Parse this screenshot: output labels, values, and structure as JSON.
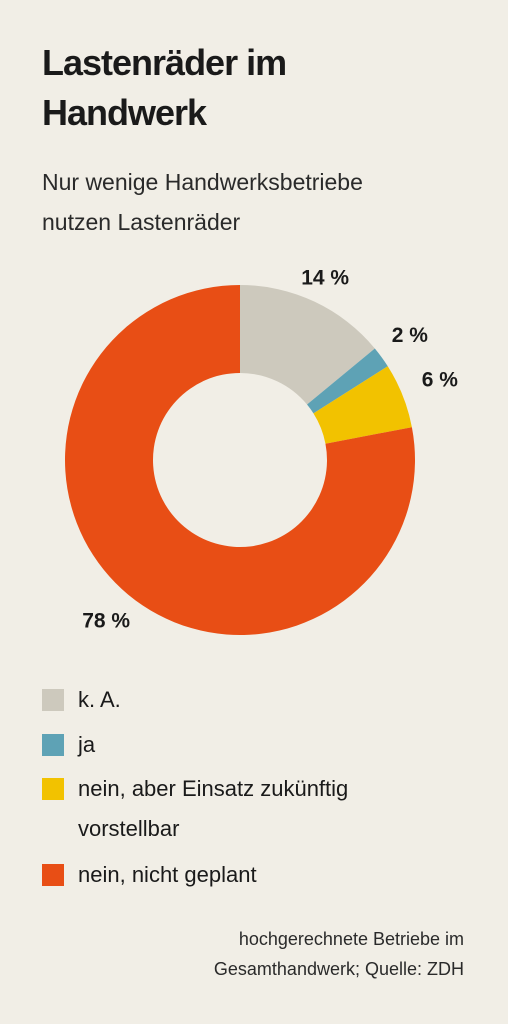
{
  "chart_data": {
    "type": "donut",
    "title": "Lastenräder im Handwerk",
    "subtitle": "Nur wenige Handwerksbetriebe nutzen Lastenräder",
    "categories": [
      "k. A.",
      "ja",
      "nein, aber Einsatz zukünftig vorstellbar",
      "nein, nicht geplant"
    ],
    "values": [
      14,
      2,
      6,
      78
    ],
    "value_labels": [
      "14 %",
      "2 %",
      "6 %",
      "78 %"
    ],
    "colors": [
      "#cdc9bd",
      "#5ea2b5",
      "#f2c200",
      "#e84e15"
    ],
    "source": "hochgerechnete Betriebe im Gesamthandwerk; Quelle: ZDH"
  }
}
